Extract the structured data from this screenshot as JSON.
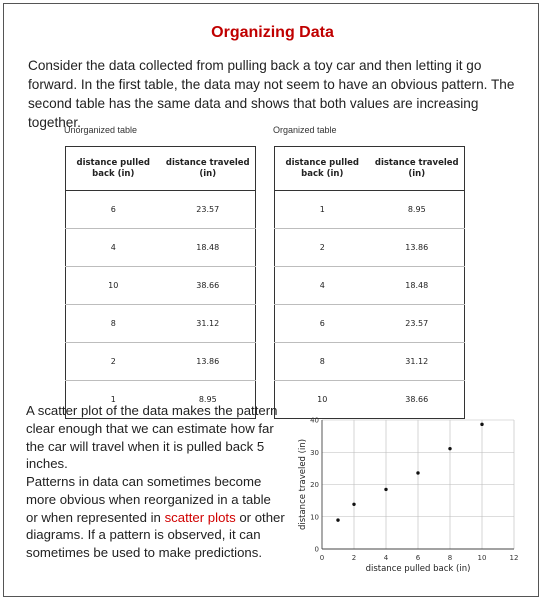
{
  "title": "Organizing Data",
  "intro": "Consider the data collected from pulling back a toy car and then letting it go forward. In the first table, the data may not seem to have an obvious pattern. The second table has the same data and shows that both values are increasing together.",
  "tables": {
    "unorganized": {
      "caption": "Unorganized table",
      "headers": [
        "distance pulled back (in)",
        "distance traveled (in)"
      ],
      "rows": [
        [
          "6",
          "23.57"
        ],
        [
          "4",
          "18.48"
        ],
        [
          "10",
          "38.66"
        ],
        [
          "8",
          "31.12"
        ],
        [
          "2",
          "13.86"
        ],
        [
          "1",
          "8.95"
        ]
      ]
    },
    "organized": {
      "caption": "Organized table",
      "headers": [
        "distance pulled back (in)",
        "distance traveled (in)"
      ],
      "rows": [
        [
          "1",
          "8.95"
        ],
        [
          "2",
          "13.86"
        ],
        [
          "4",
          "18.48"
        ],
        [
          "6",
          "23.57"
        ],
        [
          "8",
          "31.12"
        ],
        [
          "10",
          "38.66"
        ]
      ]
    }
  },
  "para1": "A scatter plot of the data makes the pattern clear enough that we can estimate how far the car will travel when it is pulled back 5 inches.",
  "para2": {
    "before": "Patterns in data can sometimes become more obvious when reorganized in a table or when represented in ",
    "link": "scatter plots",
    "after": " or other diagrams. If a pattern is observed, it can sometimes be used to make predictions."
  },
  "colors": {
    "title": "#c00000",
    "link": "#d00000",
    "grid": "#bbbbbb",
    "point": "#111111"
  },
  "chart_data": {
    "type": "scatter",
    "xlabel": "distance pulled back (in)",
    "ylabel": "distance traveled (in)",
    "xlim": [
      0,
      12
    ],
    "ylim": [
      0,
      40
    ],
    "xticks": [
      0,
      2,
      4,
      6,
      8,
      10,
      12
    ],
    "yticks": [
      0,
      10,
      20,
      30,
      40
    ],
    "grid": true,
    "points": [
      {
        "x": 1,
        "y": 8.95
      },
      {
        "x": 2,
        "y": 13.86
      },
      {
        "x": 4,
        "y": 18.48
      },
      {
        "x": 6,
        "y": 23.57
      },
      {
        "x": 8,
        "y": 31.12
      },
      {
        "x": 10,
        "y": 38.66
      }
    ]
  }
}
